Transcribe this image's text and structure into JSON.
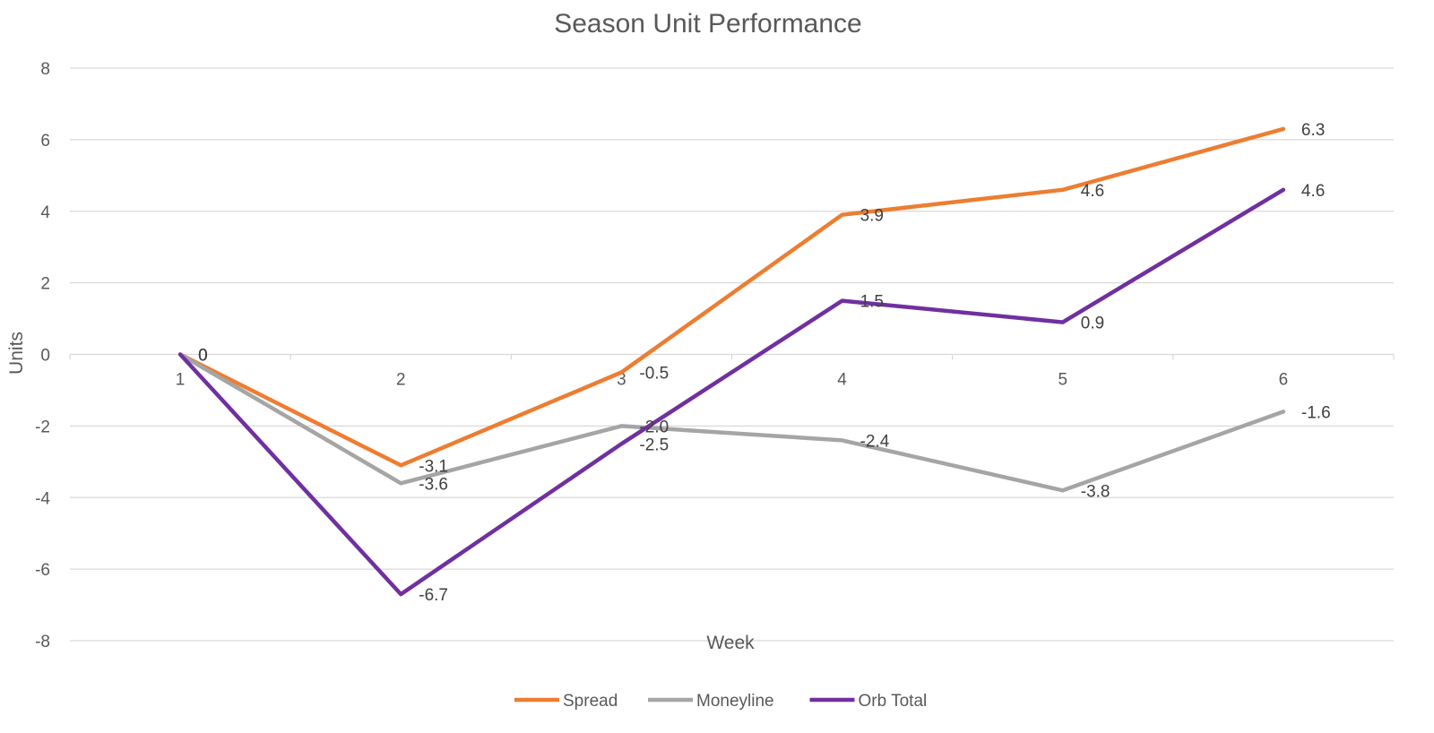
{
  "chart_data": {
    "type": "line",
    "title": "Season Unit Performance",
    "xlabel": "Week",
    "ylabel": "Units",
    "categories": [
      "1",
      "2",
      "3",
      "4",
      "5",
      "6"
    ],
    "ylim": [
      -8,
      8
    ],
    "yticks": [
      "8",
      "6",
      "4",
      "2",
      "0",
      "-2",
      "-4",
      "-6",
      "-8"
    ],
    "grid": true,
    "legend_position": "bottom",
    "series": [
      {
        "name": "Spread",
        "color": "#ED7D31",
        "values": [
          0,
          -3.1,
          -0.5,
          3.9,
          4.6,
          6.3
        ],
        "labels": [
          "0",
          "-3.1",
          "-0.5",
          "3.9",
          "4.6",
          "6.3"
        ]
      },
      {
        "name": "Moneyline",
        "color": "#A5A5A5",
        "values": [
          0,
          -3.6,
          -2.0,
          -2.4,
          -3.8,
          -1.6
        ],
        "labels": [
          "0",
          "-3.6",
          "-2.0",
          "-2.4",
          "-3.8",
          "-1.6"
        ]
      },
      {
        "name": "Orb Total",
        "color": "#7030A0",
        "values": [
          0,
          -6.7,
          -2.5,
          1.5,
          0.9,
          4.6
        ],
        "labels": [
          "0",
          "-6.7",
          "-2.5",
          "1.5",
          "0.9",
          "4.6"
        ]
      }
    ]
  }
}
